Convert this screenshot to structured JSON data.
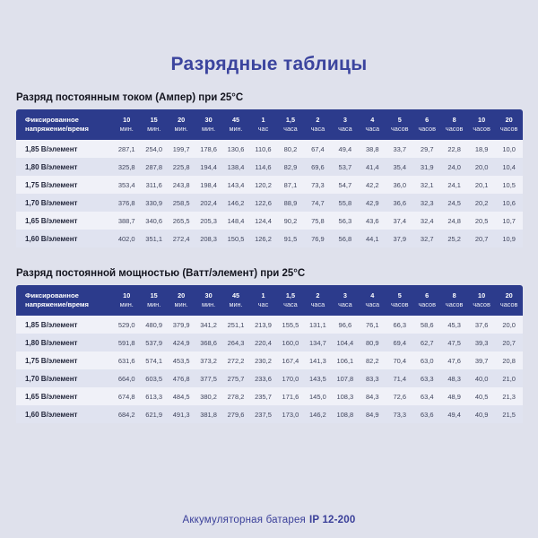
{
  "page": {
    "title": "Разрядные таблицы"
  },
  "footer": {
    "text": "Аккумуляторная батарея",
    "model": "IP 12-200"
  },
  "colors": {
    "page_background": "#dfe1ec",
    "table_header_background": "#2c3b8c",
    "table_header_text": "#ffffff",
    "row_light": "#f0f1f8",
    "row_dark": "#e0e3f0",
    "title_text": "#3b449e",
    "heading_text": "#14151f",
    "footer_text": "#3a3f99"
  },
  "tables": [
    {
      "heading": "Разряд постоянным током (Ампер) при 25°C",
      "corner_header": "Фиксированное напряжение/время",
      "columns": [
        {
          "value": "10",
          "unit": "мин."
        },
        {
          "value": "15",
          "unit": "мин."
        },
        {
          "value": "20",
          "unit": "мин."
        },
        {
          "value": "30",
          "unit": "мин."
        },
        {
          "value": "45",
          "unit": "мин."
        },
        {
          "value": "1",
          "unit": "час"
        },
        {
          "value": "1,5",
          "unit": "часа"
        },
        {
          "value": "2",
          "unit": "часа"
        },
        {
          "value": "3",
          "unit": "часа"
        },
        {
          "value": "4",
          "unit": "часа"
        },
        {
          "value": "5",
          "unit": "часов"
        },
        {
          "value": "6",
          "unit": "часов"
        },
        {
          "value": "8",
          "unit": "часов"
        },
        {
          "value": "10",
          "unit": "часов"
        },
        {
          "value": "20",
          "unit": "часов"
        }
      ],
      "rows": [
        {
          "label": "1,85 В/элемент",
          "values": [
            "287,1",
            "254,0",
            "199,7",
            "178,6",
            "130,6",
            "110,6",
            "80,2",
            "67,4",
            "49,4",
            "38,8",
            "33,7",
            "29,7",
            "22,8",
            "18,9",
            "10,0"
          ]
        },
        {
          "label": "1,80 В/элемент",
          "values": [
            "325,8",
            "287,8",
            "225,8",
            "194,4",
            "138,4",
            "114,6",
            "82,9",
            "69,6",
            "53,7",
            "41,4",
            "35,4",
            "31,9",
            "24,0",
            "20,0",
            "10,4"
          ]
        },
        {
          "label": "1,75 В/элемент",
          "values": [
            "353,4",
            "311,6",
            "243,8",
            "198,4",
            "143,4",
            "120,2",
            "87,1",
            "73,3",
            "54,7",
            "42,2",
            "36,0",
            "32,1",
            "24,1",
            "20,1",
            "10,5"
          ]
        },
        {
          "label": "1,70 В/элемент",
          "values": [
            "376,8",
            "330,9",
            "258,5",
            "202,4",
            "146,2",
            "122,6",
            "88,9",
            "74,7",
            "55,8",
            "42,9",
            "36,6",
            "32,3",
            "24,5",
            "20,2",
            "10,6"
          ]
        },
        {
          "label": "1,65 В/элемент",
          "values": [
            "388,7",
            "340,6",
            "265,5",
            "205,3",
            "148,4",
            "124,4",
            "90,2",
            "75,8",
            "56,3",
            "43,6",
            "37,4",
            "32,4",
            "24,8",
            "20,5",
            "10,7"
          ]
        },
        {
          "label": "1,60 В/элемент",
          "values": [
            "402,0",
            "351,1",
            "272,4",
            "208,3",
            "150,5",
            "126,2",
            "91,5",
            "76,9",
            "56,8",
            "44,1",
            "37,9",
            "32,7",
            "25,2",
            "20,7",
            "10,9"
          ]
        }
      ]
    },
    {
      "heading": "Разряд постоянной мощностью (Ватт/элемент) при 25°C",
      "corner_header": "Фиксированное напряжение/время",
      "columns": [
        {
          "value": "10",
          "unit": "мин."
        },
        {
          "value": "15",
          "unit": "мин."
        },
        {
          "value": "20",
          "unit": "мин."
        },
        {
          "value": "30",
          "unit": "мин."
        },
        {
          "value": "45",
          "unit": "мин."
        },
        {
          "value": "1",
          "unit": "час"
        },
        {
          "value": "1,5",
          "unit": "часа"
        },
        {
          "value": "2",
          "unit": "часа"
        },
        {
          "value": "3",
          "unit": "часа"
        },
        {
          "value": "4",
          "unit": "часа"
        },
        {
          "value": "5",
          "unit": "часов"
        },
        {
          "value": "6",
          "unit": "часов"
        },
        {
          "value": "8",
          "unit": "часов"
        },
        {
          "value": "10",
          "unit": "часов"
        },
        {
          "value": "20",
          "unit": "часов"
        }
      ],
      "rows": [
        {
          "label": "1,85 В/элемент",
          "values": [
            "529,0",
            "480,9",
            "379,9",
            "341,2",
            "251,1",
            "213,9",
            "155,5",
            "131,1",
            "96,6",
            "76,1",
            "66,3",
            "58,6",
            "45,3",
            "37,6",
            "20,0"
          ]
        },
        {
          "label": "1,80 В/элемент",
          "values": [
            "591,8",
            "537,9",
            "424,9",
            "368,6",
            "264,3",
            "220,4",
            "160,0",
            "134,7",
            "104,4",
            "80,9",
            "69,4",
            "62,7",
            "47,5",
            "39,3",
            "20,7"
          ]
        },
        {
          "label": "1,75 В/элемент",
          "values": [
            "631,6",
            "574,1",
            "453,5",
            "373,2",
            "272,2",
            "230,2",
            "167,4",
            "141,3",
            "106,1",
            "82,2",
            "70,4",
            "63,0",
            "47,6",
            "39,7",
            "20,8"
          ]
        },
        {
          "label": "1,70 В/элемент",
          "values": [
            "664,0",
            "603,5",
            "476,8",
            "377,5",
            "275,7",
            "233,6",
            "170,0",
            "143,5",
            "107,8",
            "83,3",
            "71,4",
            "63,3",
            "48,3",
            "40,0",
            "21,0"
          ]
        },
        {
          "label": "1,65 В/элемент",
          "values": [
            "674,8",
            "613,3",
            "484,5",
            "380,2",
            "278,2",
            "235,7",
            "171,6",
            "145,0",
            "108,3",
            "84,3",
            "72,6",
            "63,4",
            "48,9",
            "40,5",
            "21,3"
          ]
        },
        {
          "label": "1,60 В/элемент",
          "values": [
            "684,2",
            "621,9",
            "491,3",
            "381,8",
            "279,6",
            "237,5",
            "173,0",
            "146,2",
            "108,8",
            "84,9",
            "73,3",
            "63,6",
            "49,4",
            "40,9",
            "21,5"
          ]
        }
      ]
    }
  ]
}
